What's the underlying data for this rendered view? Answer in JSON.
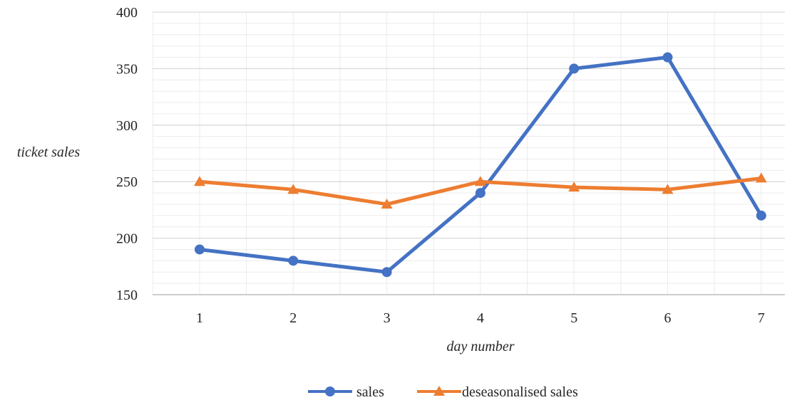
{
  "chart_data": {
    "type": "line",
    "title": "",
    "xlabel": "day number",
    "ylabel": "ticket sales",
    "categories": [
      "1",
      "2",
      "3",
      "4",
      "5",
      "6",
      "7"
    ],
    "x": [
      1,
      2,
      3,
      4,
      5,
      6,
      7
    ],
    "ylim": [
      150,
      400
    ],
    "yticks": [
      150,
      200,
      250,
      300,
      350,
      400
    ],
    "grid": true,
    "minor_grid": true,
    "legend_position": "bottom",
    "series": [
      {
        "name": "sales",
        "values": [
          190,
          180,
          170,
          240,
          350,
          360,
          220
        ],
        "color": "#4472C4",
        "marker": "circle"
      },
      {
        "name": "deseasonalised sales",
        "values": [
          250,
          243,
          230,
          250,
          245,
          243,
          253
        ],
        "color": "#ED7D31",
        "marker": "triangle"
      }
    ]
  }
}
